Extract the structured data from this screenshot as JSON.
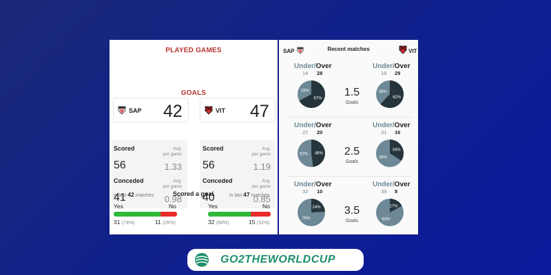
{
  "left": {
    "played_title": "PLAYED GAMES",
    "goals_title": "GOALS",
    "home": {
      "code": "SAP",
      "played": "42",
      "scored_label": "Scored",
      "scored": "56",
      "scored_avg": "1.33",
      "conceded_label": "Conceded",
      "conceded": "41",
      "conceded_avg": "0.98",
      "avg_label_1": "Avg.",
      "avg_label_2": "per game"
    },
    "away": {
      "code": "VIT",
      "played": "47",
      "scored_label": "Scored",
      "scored": "56",
      "scored_avg": "1.19",
      "conceded_label": "Conceded",
      "conceded": "40",
      "conceded_avg": "0.85",
      "avg_label_1": "Avg.",
      "avg_label_2": "per game"
    },
    "scored_goal_title": "Scored a goal",
    "home_last": {
      "prefix": "in last",
      "n": "42",
      "suffix": "matches"
    },
    "away_last": {
      "prefix": "in last",
      "n": "47",
      "suffix": "matches"
    },
    "yes_label": "Yes",
    "no_label": "No",
    "home_yes": "31",
    "home_yes_pct": "(74%)",
    "home_no": "11",
    "home_no_pct": "(26%)",
    "home_yes_frac": 0.74,
    "away_yes": "32",
    "away_yes_pct": "(68%)",
    "away_no": "15",
    "away_no_pct": "(32%)",
    "away_yes_frac": 0.68
  },
  "right": {
    "title": "Recent matches",
    "home_code": "SAP",
    "away_code": "VIT",
    "under_label": "Under/",
    "over_label": "Over",
    "goals_label": "Goals",
    "rows": [
      {
        "line": "1.5",
        "home": {
          "under": "14",
          "over": "28",
          "under_pct": 33,
          "over_pct": 67,
          "under_lbl": "33%",
          "over_lbl": "67%"
        },
        "away": {
          "under": "18",
          "over": "29",
          "under_pct": 38,
          "over_pct": 62,
          "under_lbl": "38%",
          "over_lbl": "62%"
        }
      },
      {
        "line": "2.5",
        "home": {
          "under": "22",
          "over": "20",
          "under_pct": 52,
          "over_pct": 48,
          "under_lbl": "52%",
          "over_lbl": "48%"
        },
        "away": {
          "under": "31",
          "over": "16",
          "under_pct": 66,
          "over_pct": 34,
          "under_lbl": "66%",
          "over_lbl": "34%"
        }
      },
      {
        "line": "3.5",
        "home": {
          "under": "32",
          "over": "10",
          "under_pct": 76,
          "over_pct": 24,
          "under_lbl": "76%",
          "over_lbl": "24%"
        },
        "away": {
          "under": "39",
          "over": "8",
          "under_pct": 83,
          "over_pct": 17,
          "under_lbl": "83%",
          "over_lbl": "17%"
        }
      }
    ],
    "colors": {
      "under": "#6d8896",
      "over": "#25353b"
    }
  },
  "brand": {
    "name": "GO2THEWORLDCUP",
    "color": "#1d8f6a"
  }
}
